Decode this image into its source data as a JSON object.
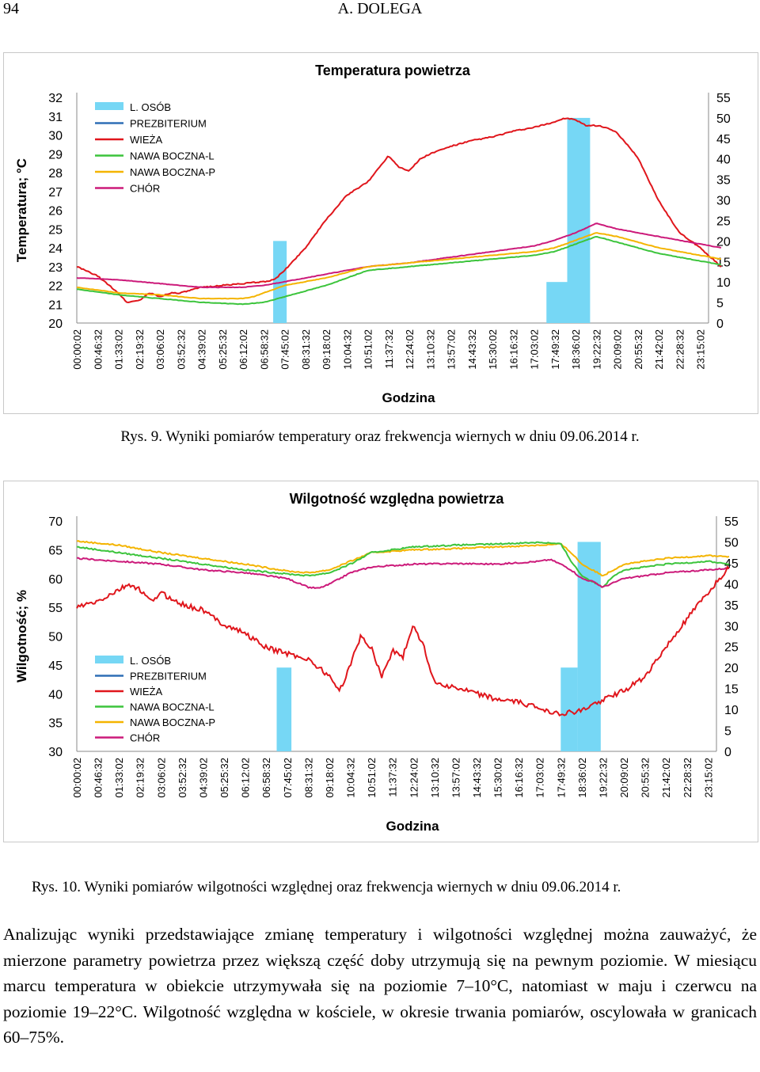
{
  "header": {
    "page_number": "94",
    "running_head": "A. DOLEGA"
  },
  "colors": {
    "L. OSÓB": "#76d7f5",
    "PREZBITERIUM": "#2f6fb5",
    "WIEŻA": "#e0161c",
    "NAWA BOCZNA-L": "#3cc43c",
    "NAWA BOCZNA-P": "#f4b400",
    "CHÓR": "#cc1a7a"
  },
  "chart_data": [
    {
      "type": "line",
      "title": "Temperatura powietrza",
      "ylabel": "Temperatura; °C",
      "xlabel": "Godzina",
      "ylim": [
        20,
        32
      ],
      "y_ticks": [
        "32",
        "31",
        "30",
        "29",
        "28",
        "27",
        "26",
        "25",
        "24",
        "23",
        "22",
        "21",
        "20"
      ],
      "y2lim": [
        0,
        55
      ],
      "y2_ticks": [
        "55",
        "50",
        "45",
        "40",
        "35",
        "30",
        "25",
        "20",
        "15",
        "10",
        "5",
        "0"
      ],
      "x_ticks": [
        "00:00:02",
        "00:46:32",
        "01:33:02",
        "02:19:32",
        "03:06:02",
        "03:52:32",
        "04:39:02",
        "05:25:32",
        "06:12:02",
        "06:58:32",
        "07:45:02",
        "08:31:32",
        "09:18:02",
        "10:04:32",
        "10:51:02",
        "11:37:32",
        "12:24:02",
        "13:10:32",
        "13:57:02",
        "14:43:32",
        "15:30:02",
        "16:16:32",
        "17:03:02",
        "17:49:32",
        "18:36:02",
        "19:22:32",
        "20:09:02",
        "20:55:32",
        "21:42:02",
        "22:28:32",
        "23:15:02"
      ],
      "legend": [
        "L. OSÓB",
        "PREZBITERIUM",
        "WIEŻA",
        "NAWA BOCZNA-L",
        "NAWA BOCZNA-P",
        "CHÓR"
      ],
      "bars": [
        {
          "name": "L. OSÓB",
          "from": 9.45,
          "to": 10.1,
          "value": 20
        },
        {
          "name": "L. OSÓB",
          "from": 22.6,
          "to": 23.6,
          "value": 10
        },
        {
          "name": "L. OSÓB",
          "from": 23.6,
          "to": 24.7,
          "value": 50
        }
      ],
      "series": [
        {
          "name": "WIEŻA",
          "x": [
            0,
            1,
            2,
            2.4,
            3,
            3.5,
            4,
            4.5,
            5,
            6,
            7,
            8,
            9,
            9.5,
            10,
            11,
            12,
            13,
            14,
            14.5,
            15,
            15.5,
            16,
            16.5,
            17,
            18,
            19,
            20,
            21,
            22,
            23,
            23.5,
            24,
            24.5,
            25,
            25.5,
            26,
            27,
            28,
            29,
            30,
            30.5,
            31
          ],
          "values": [
            23.0,
            22.5,
            21.6,
            21.1,
            21.2,
            21.6,
            21.4,
            21.6,
            21.6,
            21.9,
            22.0,
            22.1,
            22.2,
            22.3,
            22.8,
            24.0,
            25.5,
            26.8,
            27.5,
            28.2,
            28.9,
            28.3,
            28.1,
            28.7,
            29.0,
            29.4,
            29.7,
            29.9,
            30.2,
            30.4,
            30.7,
            30.9,
            30.8,
            30.5,
            30.5,
            30.4,
            30.1,
            28.8,
            26.5,
            24.8,
            24.0,
            23.5,
            23.0
          ]
        },
        {
          "name": "CHÓR",
          "x": [
            0,
            2,
            4,
            6,
            8,
            9,
            10,
            12,
            14,
            16,
            18,
            20,
            22,
            23,
            24,
            25,
            26,
            27,
            28,
            29,
            30,
            31
          ],
          "values": [
            22.4,
            22.3,
            22.1,
            21.9,
            21.9,
            22.0,
            22.2,
            22.6,
            23.0,
            23.2,
            23.5,
            23.8,
            24.1,
            24.4,
            24.8,
            25.3,
            25.0,
            24.8,
            24.6,
            24.4,
            24.2,
            24.0
          ]
        },
        {
          "name": "NAWA BOCZNA-P",
          "x": [
            0,
            2,
            4,
            6,
            8,
            8.5,
            9,
            9.5,
            10,
            11,
            12,
            13,
            14,
            16,
            18,
            20,
            22,
            23,
            24,
            25,
            26,
            27,
            28,
            29,
            30,
            31
          ],
          "values": [
            21.9,
            21.6,
            21.5,
            21.3,
            21.3,
            21.4,
            21.6,
            21.8,
            22.0,
            22.2,
            22.4,
            22.7,
            23.0,
            23.2,
            23.4,
            23.6,
            23.8,
            24.0,
            24.4,
            24.8,
            24.6,
            24.3,
            24.0,
            23.8,
            23.6,
            23.4
          ]
        },
        {
          "name": "NAWA BOCZNA-L",
          "x": [
            0,
            2,
            4,
            6,
            8,
            9,
            10,
            11,
            12,
            13,
            14,
            16,
            18,
            20,
            22,
            23,
            24,
            25,
            26,
            27,
            28,
            29,
            30,
            31
          ],
          "values": [
            21.8,
            21.5,
            21.3,
            21.1,
            21.0,
            21.1,
            21.4,
            21.7,
            22.0,
            22.4,
            22.8,
            23.0,
            23.2,
            23.4,
            23.6,
            23.8,
            24.2,
            24.6,
            24.3,
            24.0,
            23.7,
            23.5,
            23.3,
            23.1
          ]
        }
      ]
    },
    {
      "type": "line",
      "title": "Wilgotność  względna powietrza",
      "ylabel": "Wilgotność; %",
      "xlabel": "Godzina",
      "ylim": [
        30,
        70
      ],
      "y_ticks": [
        "70",
        "65",
        "60",
        "55",
        "50",
        "45",
        "40",
        "35",
        "30"
      ],
      "y2lim": [
        0,
        55
      ],
      "y2_ticks": [
        "55",
        "50",
        "45",
        "40",
        "35",
        "30",
        "25",
        "20",
        "15",
        "10",
        "5",
        "0"
      ],
      "x_ticks": [
        "00:00:02",
        "00:46:32",
        "01:33:02",
        "02:19:32",
        "03:06:02",
        "03:52:32",
        "04:39:02",
        "05:25:32",
        "06:12:02",
        "06:58:32",
        "07:45:02",
        "08:31:32",
        "09:18:02",
        "10:04:32",
        "10:51:02",
        "11:37:32",
        "12:24:02",
        "13:10:32",
        "13:57:02",
        "14:43:32",
        "15:30:02",
        "16:16:32",
        "17:03:02",
        "17:49:32",
        "18:36:02",
        "19:22:32",
        "20:09:02",
        "20:55:32",
        "21:42:02",
        "22:28:32",
        "23:15:02"
      ],
      "legend": [
        "L. OSÓB",
        "PREZBITERIUM",
        "WIEŻA",
        "NAWA BOCZNA-L",
        "NAWA BOCZNA-P",
        "CHÓR"
      ],
      "bars": [
        {
          "name": "L. OSÓB",
          "from": 9.5,
          "to": 10.2,
          "value": 20
        },
        {
          "name": "L. OSÓB",
          "from": 23.0,
          "to": 23.8,
          "value": 20
        },
        {
          "name": "L. OSÓB",
          "from": 23.8,
          "to": 24.9,
          "value": 50
        }
      ],
      "series": [
        {
          "name": "NAWA BOCZNA-P",
          "x": [
            0,
            2,
            4,
            6,
            8,
            10,
            11,
            12,
            13,
            14,
            16,
            18,
            20,
            22,
            23,
            23.5,
            24,
            24.5,
            25,
            25.5,
            26,
            28,
            30,
            31
          ],
          "values": [
            66.5,
            65.8,
            64.5,
            63.5,
            62.5,
            61.3,
            61.0,
            61.5,
            63.0,
            64.5,
            65.0,
            65.2,
            65.5,
            65.8,
            66.0,
            64.5,
            62.5,
            61.5,
            60.5,
            61.5,
            62.5,
            63.5,
            64.0,
            63.8
          ]
        },
        {
          "name": "NAWA BOCZNA-L",
          "x": [
            0,
            2,
            4,
            6,
            8,
            10,
            11,
            12,
            13,
            14,
            16,
            18,
            20,
            22,
            23,
            23.5,
            24,
            24.5,
            25,
            25.5,
            26,
            28,
            30,
            31
          ],
          "values": [
            65.5,
            64.5,
            63.5,
            62.5,
            61.5,
            60.8,
            60.5,
            61.0,
            62.5,
            64.5,
            65.5,
            65.8,
            66.0,
            66.3,
            66.0,
            63.0,
            60.5,
            59.5,
            58.5,
            60.5,
            61.5,
            62.5,
            63.0,
            62.5
          ]
        },
        {
          "name": "CHÓR",
          "x": [
            0,
            2,
            4,
            6,
            8,
            10,
            11,
            11.5,
            12,
            13,
            14,
            16,
            18,
            20,
            22,
            22.5,
            23,
            23.5,
            24,
            24.5,
            25,
            26,
            28,
            30,
            31
          ],
          "values": [
            63.5,
            63.0,
            62.5,
            61.5,
            61.0,
            60.0,
            58.5,
            58.3,
            59.0,
            61.0,
            62.0,
            62.5,
            62.6,
            62.5,
            63.0,
            63.3,
            62.5,
            61.5,
            60.0,
            59.5,
            58.5,
            60.0,
            61.0,
            61.5,
            61.8
          ]
        },
        {
          "name": "WIEŻA",
          "x": [
            0,
            1,
            2,
            2.5,
            3,
            3.5,
            4,
            5,
            6,
            7,
            8,
            9,
            10,
            11,
            12,
            12.5,
            13,
            13.5,
            14,
            14.5,
            15,
            15.5,
            16,
            16.5,
            17,
            18,
            19,
            20,
            21,
            22,
            23,
            24,
            25,
            26,
            27,
            28,
            29,
            30,
            31
          ],
          "values": [
            55.0,
            56.0,
            58.0,
            59.0,
            58.0,
            56.0,
            57.5,
            55.5,
            54.5,
            52.0,
            50.5,
            48.0,
            47.0,
            46.0,
            43.0,
            40.5,
            45.0,
            50.0,
            48.0,
            43.0,
            47.5,
            46.5,
            52.0,
            48.0,
            42.0,
            41.0,
            40.0,
            39.0,
            38.5,
            37.5,
            36.5,
            37.0,
            39.0,
            40.5,
            43.0,
            48.0,
            53.0,
            57.5,
            62.0
          ]
        }
      ]
    }
  ],
  "captions": {
    "fig9": "Rys. 9. Wyniki pomiarów temperatury oraz frekwencja wiernych w dniu 09.06.2014 r.",
    "fig10": "Rys. 10. Wyniki pomiarów wilgotności względnej oraz frekwencja wiernych w dniu 09.06.2014 r."
  },
  "body_text": "Analizując wyniki przedstawiające zmianę temperatury i wilgotności względnej można zauważyć, że mierzone parametry powietrza przez większą część doby utrzymują się na pewnym poziomie. W miesiącu marcu temperatura w obiekcie utrzymywała się na poziomie 7–10°C, natomiast w maju i czerwcu na poziomie 19–22°C. Wilgotność względna w kościele, w okresie trwania pomiarów, oscylowała w granicach 60–75%."
}
